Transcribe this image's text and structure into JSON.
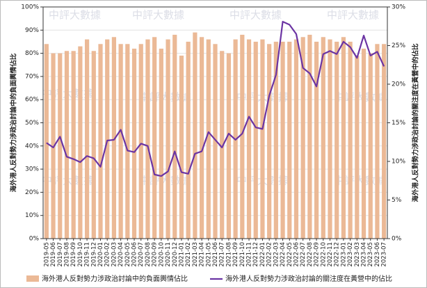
{
  "chart_data": {
    "type": "bar",
    "watermark": "中評大數據",
    "ylabel": "海外港人反對勢力涉政治討論中的負面輿情佔比",
    "y2label": "海外港人反對勢力涉政治討論的關注度在黃營中的佔比",
    "categories": [
      "2019-05",
      "2019-06",
      "2019-07",
      "2019-08",
      "2019-09",
      "2019-10",
      "2019-11",
      "2019-12",
      "2020-01",
      "2020-02",
      "2020-03",
      "2020-04",
      "2020-05",
      "2020-06",
      "2020-07",
      "2020-08",
      "2020-09",
      "2020-10",
      "2020-11",
      "2020-12",
      "2021-01",
      "2021-02",
      "2021-03",
      "2021-04",
      "2021-05",
      "2021-06",
      "2021-07",
      "2021-08",
      "2021-09",
      "2021-10",
      "2021-11",
      "2021-12",
      "2022-01",
      "2022-02",
      "2022-03",
      "2022-04",
      "2022-05",
      "2022-06",
      "2022-07",
      "2022-08",
      "2022-09",
      "2022-10",
      "2022-11",
      "2022-12",
      "2023-01",
      "2023-02",
      "2023-03",
      "2023-04",
      "2023-05",
      "2023-06",
      "2023-07"
    ],
    "series": [
      {
        "name": "海外港人反對勢力涉政治討論中的負面輿情佔比",
        "type": "bar",
        "color": "#ebb996",
        "values": [
          84,
          80,
          80,
          81,
          81,
          83,
          86,
          81,
          84,
          86,
          87,
          84,
          84,
          82,
          84,
          86,
          87,
          82,
          86,
          88,
          79,
          85,
          89,
          87,
          86,
          84,
          81,
          80,
          86,
          88,
          86,
          85,
          86,
          84,
          85,
          85,
          85,
          86,
          87,
          88,
          85,
          87,
          86,
          85,
          87,
          85,
          79,
          82,
          80,
          84,
          84
        ]
      },
      {
        "name": "海外港人反對勢力涉政治討論的關注度在黃營中的佔比",
        "type": "line",
        "axis": "y2",
        "color": "#6b34a3",
        "values": [
          12.4,
          11.8,
          13.2,
          10.6,
          10.3,
          9.9,
          10.7,
          10.4,
          9.3,
          12.7,
          12.8,
          14.1,
          11.4,
          11.2,
          12.3,
          12.0,
          8.3,
          8.1,
          8.7,
          11.3,
          8.6,
          8.4,
          11.0,
          11.3,
          13.8,
          12.8,
          11.8,
          13.6,
          12.8,
          13.6,
          15.8,
          14.4,
          14.2,
          18.5,
          21.2,
          28.1,
          27.7,
          26.5,
          22.1,
          21.4,
          19.7,
          23.9,
          24.3,
          23.9,
          25.5,
          24.8,
          23.4,
          26.3,
          23.7,
          24.2,
          22.3
        ]
      }
    ],
    "ylim": [
      0,
      100
    ],
    "yticks": [
      {
        "value": 0,
        "label": "0%"
      },
      {
        "value": 10,
        "label": "10%"
      },
      {
        "value": 20,
        "label": "20%"
      },
      {
        "value": 30,
        "label": "30%"
      },
      {
        "value": 40,
        "label": "40%"
      },
      {
        "value": 50,
        "label": "50%"
      },
      {
        "value": 60,
        "label": "60%"
      },
      {
        "value": 70,
        "label": "70%"
      },
      {
        "value": 80,
        "label": "80%"
      },
      {
        "value": 90,
        "label": "90%"
      },
      {
        "value": 100,
        "label": "100%"
      }
    ],
    "y2lim": [
      0,
      30
    ],
    "y2ticks": [
      {
        "value": 0,
        "label": "0%"
      },
      {
        "value": 5,
        "label": "5%"
      },
      {
        "value": 10,
        "label": "10%"
      },
      {
        "value": 15,
        "label": "15%"
      },
      {
        "value": 20,
        "label": "20%"
      },
      {
        "value": 25,
        "label": "25%"
      },
      {
        "value": 30,
        "label": "30%"
      }
    ],
    "grid": true,
    "legend": "bottom"
  }
}
